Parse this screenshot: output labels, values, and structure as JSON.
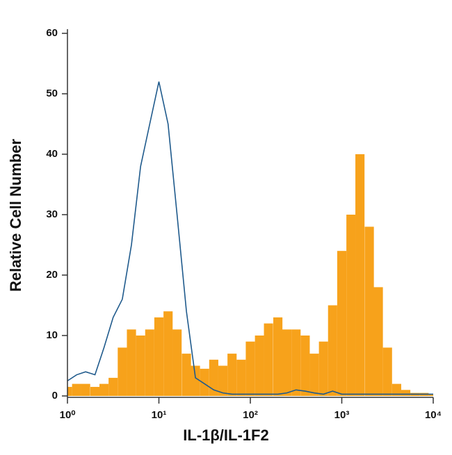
{
  "chart_data": {
    "type": "histogram",
    "xlabel": "IL-1β/IL-1F2",
    "ylabel": "Relative Cell Number",
    "xscale": "log",
    "xlim": [
      1,
      10000
    ],
    "xticks": [
      {
        "value": 1,
        "label": "10⁰"
      },
      {
        "value": 10,
        "label": "10¹"
      },
      {
        "value": 100,
        "label": "10²"
      },
      {
        "value": 1000,
        "label": "10³"
      },
      {
        "value": 10000,
        "label": "10⁴"
      }
    ],
    "ylim": [
      0,
      60
    ],
    "yticks": [
      0,
      10,
      20,
      30,
      40,
      50,
      60
    ],
    "x": [
      1,
      1.26,
      1.58,
      2,
      2.51,
      3.16,
      3.98,
      5.01,
      6.31,
      7.94,
      10,
      12.6,
      15.8,
      20,
      25.1,
      31.6,
      39.8,
      50.1,
      63.1,
      79.4,
      100,
      126,
      158,
      200,
      251,
      316,
      398,
      501,
      631,
      794,
      1000,
      1260,
      1580,
      2000,
      2510,
      3160,
      3980,
      5010,
      6310,
      7940,
      10000
    ],
    "series": [
      {
        "color": "#f7a21b",
        "fill": true,
        "values": [
          1.5,
          2,
          2,
          1.5,
          2,
          3,
          8,
          11,
          10,
          11,
          13,
          14,
          11,
          7,
          5,
          4.5,
          6,
          5,
          7,
          6,
          9,
          10,
          12,
          13,
          11,
          11,
          10,
          7,
          9,
          15,
          24,
          30,
          40,
          28,
          18,
          8,
          2,
          1,
          0.5,
          0.5,
          0.3
        ]
      },
      {
        "color": "#1f5a8c",
        "fill": false,
        "values": [
          2.5,
          3.5,
          4,
          3.5,
          8,
          13,
          16,
          25,
          38,
          45,
          52,
          45,
          30,
          14,
          3,
          2,
          1,
          0.5,
          0.3,
          0.3,
          0.3,
          0.3,
          0.3,
          0.3,
          0.5,
          1,
          0.8,
          0.5,
          0.3,
          0.8,
          0.3,
          0.3,
          0.3,
          0.3,
          0.3,
          0.3,
          0.3,
          0.3,
          0.3,
          0.3,
          0.3
        ]
      }
    ]
  }
}
